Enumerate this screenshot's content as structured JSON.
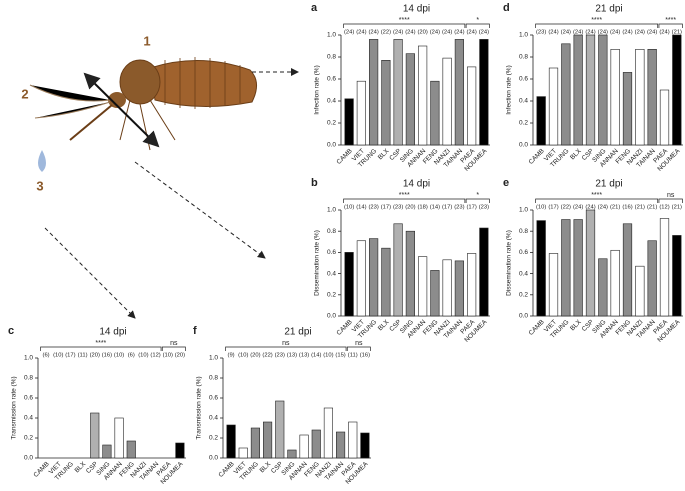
{
  "diagram": {
    "labels": [
      "1",
      "2",
      "3"
    ]
  },
  "chart_data": [
    {
      "type": "bar",
      "panel": "a",
      "title": "14 dpi",
      "ylabel": "Infection rate (%)",
      "categories": [
        "CAMB",
        "VIET",
        "TRUNG",
        "BLX",
        "CSP",
        "SING",
        "ANNAN",
        "FENG",
        "NANZI",
        "TAINAN",
        "PAEA",
        "NOUMEA"
      ],
      "values": [
        0.42,
        0.58,
        0.96,
        0.77,
        0.96,
        0.83,
        0.9,
        0.58,
        0.79,
        0.96,
        0.71,
        0.96
      ],
      "colors": [
        "#000000",
        "#ffffff",
        "#8c8c8c",
        "#8c8c8c",
        "#b0b0b0",
        "#8c8c8c",
        "#ffffff",
        "#8c8c8c",
        "#ffffff",
        "#8c8c8c",
        "#ffffff",
        "#000000"
      ],
      "n_labels": [
        "(24)",
        "(24)",
        "(24)",
        "(22)",
        "(24)",
        "(24)",
        "(20)",
        "(24)",
        "(24)",
        "(24)",
        "(24)",
        "(24)"
      ],
      "significance": [
        "****",
        "*"
      ],
      "ylim": [
        0,
        1
      ],
      "yticks": [
        {
          "value": 0,
          "label": "0.0"
        },
        0.2,
        0.4,
        0.6,
        0.8,
        {
          "value": 1,
          "label": "1.0"
        }
      ]
    },
    {
      "type": "bar",
      "panel": "b",
      "title": "14 dpi",
      "ylabel": "Dissemination rate (%)",
      "categories": [
        "CAMB",
        "VIET",
        "TRUNG",
        "BLX",
        "CSP",
        "SING",
        "ANNAN",
        "FENG",
        "NANZI",
        "TAINAN",
        "PAEA",
        "NOUMEA"
      ],
      "values": [
        0.6,
        0.71,
        0.73,
        0.64,
        0.87,
        0.8,
        0.56,
        0.43,
        0.53,
        0.52,
        0.59,
        0.83
      ],
      "colors": [
        "#000000",
        "#ffffff",
        "#8c8c8c",
        "#8c8c8c",
        "#b0b0b0",
        "#8c8c8c",
        "#ffffff",
        "#8c8c8c",
        "#ffffff",
        "#8c8c8c",
        "#ffffff",
        "#000000"
      ],
      "n_labels": [
        "(10)",
        "(14)",
        "(23)",
        "(17)",
        "(23)",
        "(20)",
        "(18)",
        "(14)",
        "(17)",
        "(23)",
        "(17)",
        "(23)"
      ],
      "significance": [
        "****",
        "*"
      ],
      "ylim": [
        0,
        1
      ],
      "yticks": [
        {
          "value": 0,
          "label": "0.0"
        },
        0.2,
        0.4,
        0.6,
        0.8,
        {
          "value": 1,
          "label": "1.0"
        }
      ]
    },
    {
      "type": "bar",
      "panel": "c",
      "title": "14 dpi",
      "ylabel": "Transmission rate (%)",
      "categories": [
        "CAMB",
        "VIET",
        "TRUNG",
        "BLX",
        "CSP",
        "SING",
        "ANNAN",
        "FENG",
        "NANZI",
        "TAINAN",
        "PAEA",
        "NOUMEA"
      ],
      "values": [
        0,
        0,
        0,
        0,
        0.45,
        0.13,
        0.4,
        0.17,
        0,
        0,
        0,
        0.15
      ],
      "colors": [
        "#000000",
        "#ffffff",
        "#8c8c8c",
        "#8c8c8c",
        "#b0b0b0",
        "#8c8c8c",
        "#ffffff",
        "#8c8c8c",
        "#ffffff",
        "#8c8c8c",
        "#ffffff",
        "#000000"
      ],
      "n_labels": [
        "(6)",
        "(10)",
        "(17)",
        "(11)",
        "(20)",
        "(16)",
        "(10)",
        "(6)",
        "(10)",
        "(12)",
        "(10)",
        "(20)"
      ],
      "significance": [
        "****",
        "ns"
      ],
      "ylim": [
        0,
        1
      ],
      "yticks": [
        {
          "value": 0,
          "label": "0.0"
        },
        0.2,
        0.4,
        0.6,
        0.8,
        {
          "value": 1,
          "label": "1.0"
        }
      ]
    },
    {
      "type": "bar",
      "panel": "d",
      "title": "21 dpi",
      "ylabel": "Infection rate (%)",
      "categories": [
        "CAMB",
        "VIET",
        "TRUNG",
        "BLX",
        "CSP",
        "SING",
        "ANNAN",
        "FENG",
        "NANZI",
        "TAINAN",
        "PAEA",
        "NOUMEA"
      ],
      "values": [
        0.44,
        0.7,
        0.92,
        1,
        1,
        1,
        0.87,
        0.66,
        0.87,
        0.87,
        0.5,
        1
      ],
      "colors": [
        "#000000",
        "#ffffff",
        "#8c8c8c",
        "#8c8c8c",
        "#b0b0b0",
        "#8c8c8c",
        "#ffffff",
        "#8c8c8c",
        "#ffffff",
        "#8c8c8c",
        "#ffffff",
        "#000000"
      ],
      "n_labels": [
        "(23)",
        "(24)",
        "(24)",
        "(24)",
        "(24)",
        "(24)",
        "(24)",
        "(24)",
        "(24)",
        "(24)",
        "(24)",
        "(21)"
      ],
      "significance": [
        "****",
        "****"
      ],
      "ylim": [
        0,
        1
      ],
      "yticks": [
        {
          "value": 0,
          "label": "0.0"
        },
        0.2,
        0.4,
        0.6,
        0.8,
        {
          "value": 1,
          "label": "1.0"
        }
      ]
    },
    {
      "type": "bar",
      "panel": "e",
      "title": "21 dpi",
      "ylabel": "Dissemination rate (%)",
      "categories": [
        "CAMB",
        "VIET",
        "TRUNG",
        "BLX",
        "CSP",
        "SING",
        "ANNAN",
        "FENG",
        "NANZI",
        "TAINAN",
        "PAEA",
        "NOUMEA"
      ],
      "values": [
        0.9,
        0.59,
        0.91,
        0.91,
        1,
        0.54,
        0.62,
        0.87,
        0.47,
        0.71,
        0.92,
        0.76
      ],
      "colors": [
        "#000000",
        "#ffffff",
        "#8c8c8c",
        "#8c8c8c",
        "#b0b0b0",
        "#8c8c8c",
        "#ffffff",
        "#8c8c8c",
        "#ffffff",
        "#8c8c8c",
        "#ffffff",
        "#000000"
      ],
      "n_labels": [
        "(10)",
        "(17)",
        "(22)",
        "(24)",
        "(24)",
        "(24)",
        "(21)",
        "(16)",
        "(21)",
        "(21)",
        "(12)",
        "(21)"
      ],
      "significance": [
        "****",
        "ns"
      ],
      "ylim": [
        0,
        1
      ],
      "yticks": [
        {
          "value": 0,
          "label": "0.0"
        },
        0.2,
        0.4,
        0.6,
        0.8,
        {
          "value": 1,
          "label": "1.0"
        }
      ]
    },
    {
      "type": "bar",
      "panel": "f",
      "title": "21 dpi",
      "ylabel": "Transmission rate (%)",
      "categories": [
        "CAMB",
        "VIET",
        "TRUNG",
        "BLX",
        "CSP",
        "SING",
        "ANNAN",
        "FENG",
        "NANZI",
        "TAINAN",
        "PAEA",
        "NOUMEA"
      ],
      "values": [
        0.33,
        0.1,
        0.3,
        0.36,
        0.57,
        0.08,
        0.23,
        0.28,
        0.5,
        0.26,
        0.36,
        0.25
      ],
      "colors": [
        "#000000",
        "#ffffff",
        "#8c8c8c",
        "#8c8c8c",
        "#b0b0b0",
        "#8c8c8c",
        "#ffffff",
        "#8c8c8c",
        "#ffffff",
        "#8c8c8c",
        "#ffffff",
        "#000000"
      ],
      "n_labels": [
        "(9)",
        "(10)",
        "(20)",
        "(22)",
        "(23)",
        "(13)",
        "(13)",
        "(14)",
        "(10)",
        "(15)",
        "(11)",
        "(16)"
      ],
      "significance": [
        "ns",
        "ns"
      ],
      "ylim": [
        0,
        1
      ],
      "yticks": [
        {
          "value": 0,
          "label": "0.0"
        },
        0.2,
        0.4,
        0.6,
        0.8,
        {
          "value": 1,
          "label": "1.0"
        }
      ]
    }
  ]
}
